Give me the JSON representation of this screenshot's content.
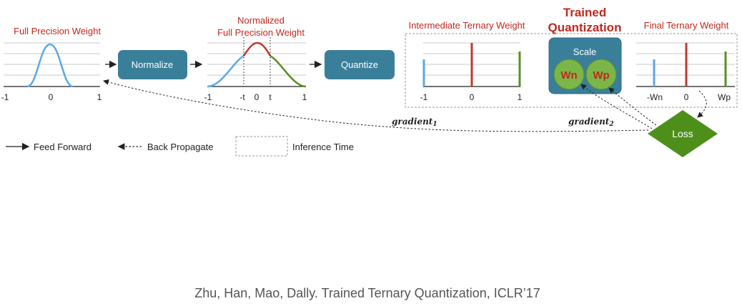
{
  "colors": {
    "red_title": "#c0281e",
    "blue_curve": "#5aa9e6",
    "red_curve": "#c0392b",
    "green_curve": "#5a8f23",
    "box_fill": "#3a7f9a",
    "loss_fill": "#4e8f1a",
    "circle_fill": "#7ab648",
    "grid": "#c8c8c8",
    "axis": "#222222",
    "text": "#222222"
  },
  "panels": {
    "full_precision": {
      "title": "Full Precision Weight",
      "ticks": [
        "-1",
        "0",
        "1"
      ]
    },
    "normalized": {
      "title_line1": "Normalized",
      "title_line2": "Full Precision Weight",
      "ticks": [
        "-1",
        "-t",
        "0",
        "t",
        "1"
      ]
    },
    "intermediate": {
      "title": "Intermediate Ternary Weight",
      "ticks": [
        "-1",
        "0",
        "1"
      ]
    },
    "trained": {
      "title_line1": "Trained",
      "title_line2": "Quantization",
      "scale_label": "Scale",
      "wn": "Wn",
      "wp": "Wp"
    },
    "final": {
      "title": "Final Ternary Weight",
      "ticks": [
        "-Wn",
        "0",
        "Wp"
      ]
    }
  },
  "boxes": {
    "normalize": "Normalize",
    "quantize": "Quantize",
    "loss": "Loss"
  },
  "gradients": {
    "g1_text": "gradient",
    "g1_sub": "1",
    "g2_text": "gradient",
    "g2_sub": "2"
  },
  "legend": {
    "feed_forward": "Feed Forward",
    "back_propagate": "Back Propagate",
    "inference_time": "Inference Time"
  },
  "citation": "Zhu, Han, Mao, Dally. Trained Ternary Quantization, ICLR’17"
}
